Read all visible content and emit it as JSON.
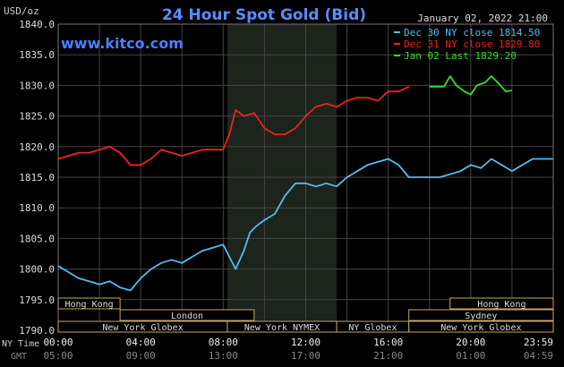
{
  "header": {
    "title": "24 Hour Spot Gold (Bid)",
    "date": "January 02, 2022 21:00",
    "site": "www.kitco.com",
    "y_unit": "USD/oz"
  },
  "legend": [
    {
      "label": "Dec 30 NY close 1814.50",
      "color": "#55bbee"
    },
    {
      "label": "Dec 31 NY close 1829.80",
      "color": "#ee2222"
    },
    {
      "label": "Jan 02 Last 1829.20",
      "color": "#33dd33"
    }
  ],
  "x_row_labels": {
    "ny_time": "NY Time",
    "gmt": "GMT"
  },
  "x_ticks_ny": [
    "00:00",
    "04:00",
    "08:00",
    "12:00",
    "16:00",
    "20:00",
    "23:59"
  ],
  "x_ticks_gmt": [
    "05:00",
    "09:00",
    "13:00",
    "17:00",
    "21:00",
    "01:00",
    "04:59"
  ],
  "sessions_row1": [
    {
      "label": "Hong Kong",
      "start": 0,
      "end": 3
    },
    {
      "label": "Hong Kong",
      "start": 19,
      "end": 24
    }
  ],
  "sessions_row2": [
    {
      "label": "London",
      "start": 3,
      "end": 9.5
    },
    {
      "label": "Sydney",
      "start": 17,
      "end": 24
    }
  ],
  "sessions_row3": [
    {
      "label": "New York Globex",
      "start": 0,
      "end": 8.2
    },
    {
      "label": "New York NYMEX",
      "start": 8.2,
      "end": 13.5
    },
    {
      "label": "NY Globex",
      "start": 13.5,
      "end": 17
    },
    {
      "label": "New York Globex",
      "start": 17,
      "end": 24
    }
  ],
  "chart_data": {
    "type": "line",
    "title": "24 Hour Spot Gold (Bid)",
    "ylabel": "USD/oz",
    "xlim": [
      0,
      24
    ],
    "ylim": [
      1790,
      1840
    ],
    "yticks": [
      1790,
      1795,
      1800,
      1805,
      1810,
      1815,
      1820,
      1825,
      1830,
      1835,
      1840
    ],
    "grid": true,
    "highlight_x": [
      8.2,
      13.5
    ],
    "legend_position": "top-right",
    "series": [
      {
        "name": "Dec 30 NY close 1814.50",
        "color": "#55bbee",
        "x": [
          0,
          0.5,
          1,
          1.5,
          2,
          2.5,
          3,
          3.5,
          4,
          4.5,
          5,
          5.5,
          6,
          6.5,
          7,
          7.5,
          8,
          8.3,
          8.6,
          9,
          9.3,
          9.6,
          10,
          10.5,
          11,
          11.5,
          12,
          12.5,
          13,
          13.5,
          14,
          14.5,
          15,
          15.5,
          16,
          16.5,
          17,
          17.5,
          18,
          18.5,
          19,
          19.5,
          20,
          20.5,
          21,
          21.5,
          22,
          22.5,
          23,
          23.5,
          24
        ],
        "y": [
          1800.5,
          1799.5,
          1798.5,
          1798,
          1797.5,
          1798,
          1797,
          1796.5,
          1798.5,
          1800,
          1801,
          1801.5,
          1801,
          1802,
          1803,
          1803.5,
          1804,
          1802,
          1800,
          1803,
          1806,
          1807,
          1808,
          1809,
          1812,
          1814,
          1814,
          1813.5,
          1814,
          1813.5,
          1815,
          1816,
          1817,
          1817.5,
          1818,
          1817,
          1815,
          1815,
          1815,
          1815,
          1815.5,
          1816,
          1817,
          1816.5,
          1818,
          1817,
          1816,
          1817,
          1818,
          1818,
          1818
        ]
      },
      {
        "name": "Dec 31 NY close 1829.80",
        "color": "#ee2222",
        "x": [
          0,
          0.5,
          1,
          1.5,
          2,
          2.5,
          3,
          3.5,
          4,
          4.5,
          5,
          5.5,
          6,
          6.5,
          7,
          7.5,
          8,
          8.3,
          8.6,
          9,
          9.5,
          10,
          10.5,
          11,
          11.5,
          12,
          12.5,
          13,
          13.5,
          14,
          14.5,
          15,
          15.5,
          16,
          16.5,
          17
        ],
        "y": [
          1818,
          1818.5,
          1819,
          1819,
          1819.5,
          1820,
          1819,
          1817,
          1817,
          1818,
          1819.5,
          1819,
          1818.5,
          1819,
          1819.5,
          1819.5,
          1819.5,
          1822,
          1826,
          1825,
          1825.5,
          1823,
          1822,
          1822,
          1823,
          1825,
          1826.5,
          1827,
          1826.5,
          1827.5,
          1828,
          1828,
          1827.5,
          1829,
          1829,
          1829.8
        ]
      },
      {
        "name": "Jan 02 Last 1829.20",
        "color": "#33dd33",
        "x": [
          18,
          18.3,
          18.7,
          19,
          19.3,
          19.7,
          20,
          20.3,
          20.7,
          21,
          21.3,
          21.7,
          22
        ],
        "y": [
          1829.8,
          1829.8,
          1829.8,
          1831.5,
          1830,
          1829,
          1828.5,
          1830,
          1830.5,
          1831.5,
          1830.5,
          1829,
          1829.2
        ]
      }
    ]
  }
}
